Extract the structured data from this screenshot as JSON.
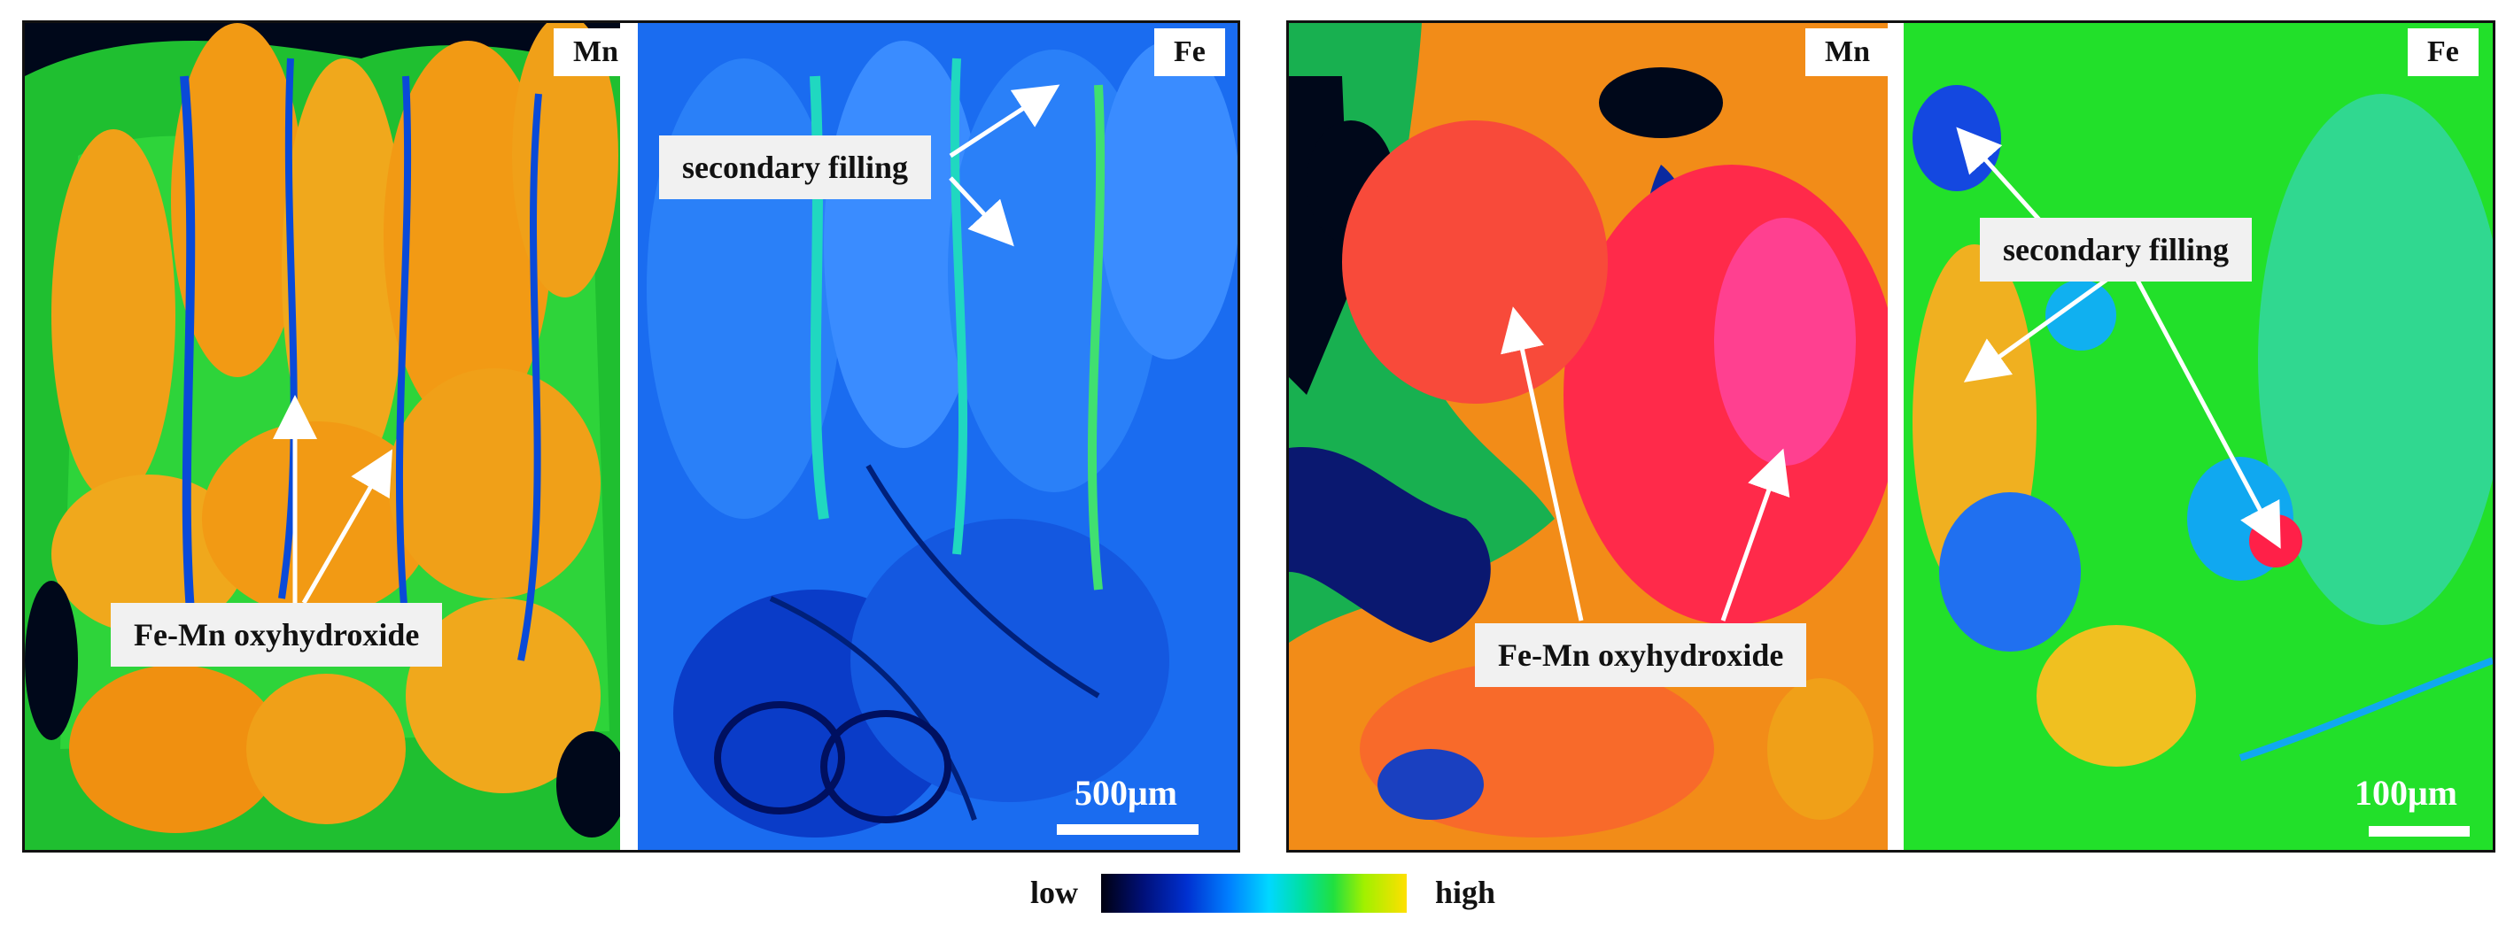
{
  "panel_a": {
    "left_label": "Mn",
    "right_label": "Fe",
    "callouts": {
      "secondary_filling": "secondary filling",
      "oxyhydroxide": "Fe-Mn  oxyhydroxide"
    },
    "scale": "500μm"
  },
  "panel_b": {
    "left_label": "Mn",
    "right_label": "Fe",
    "callouts": {
      "secondary_filling": "secondary filling",
      "oxyhydroxide": "Fe-Mn  oxyhydroxide"
    },
    "scale": "100μm"
  },
  "legend": {
    "low": "low",
    "high": "high"
  },
  "colors": {
    "map_black": "#00081a",
    "map_deep_blue": "#0010a0",
    "map_blue": "#1a5cf0",
    "map_cyan": "#10c8f0",
    "map_green": "#22e030",
    "map_yellow": "#f0c000",
    "map_orange": "#f09010",
    "map_red": "#ff2040",
    "map_magenta": "#ff30a0"
  }
}
